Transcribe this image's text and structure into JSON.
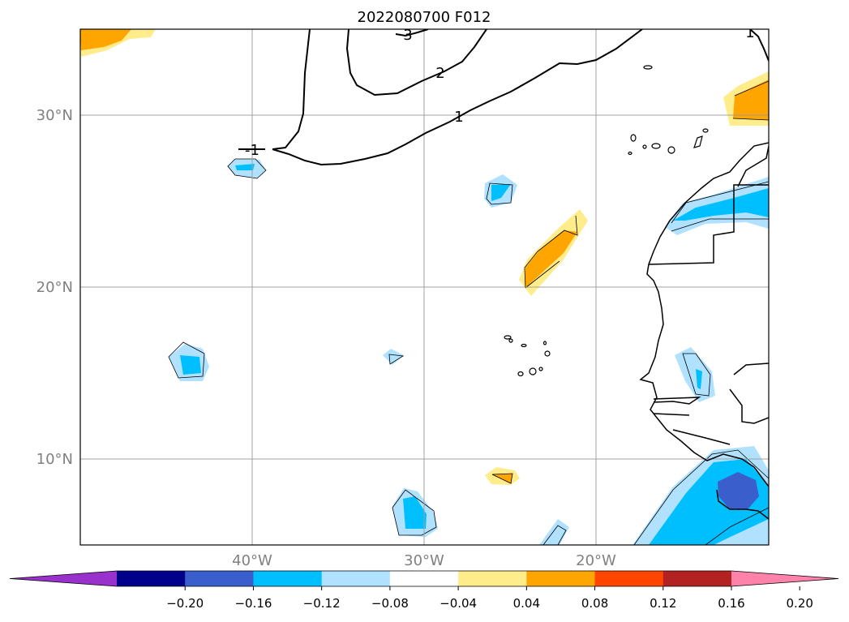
{
  "title": "2022080700 F012",
  "map": {
    "lat_labels": [
      {
        "label": "30°N",
        "lat": 30
      },
      {
        "label": "20°N",
        "lat": 20
      },
      {
        "label": "10°N",
        "lat": 10
      }
    ],
    "lon_labels": [
      {
        "label": "40°W",
        "lon": -40
      },
      {
        "label": "30°W",
        "lon": -30
      },
      {
        "label": "20°W",
        "lon": -20
      }
    ],
    "extent": {
      "lon_min": -50,
      "lon_max": -10,
      "lat_min": 5,
      "lat_max": 35
    },
    "contour_labels": [
      "3",
      "2",
      "1",
      "-1",
      "1"
    ]
  },
  "colorbar": {
    "ticks": [
      "−0.20",
      "−0.16",
      "−0.12",
      "−0.08",
      "−0.04",
      "0.04",
      "0.08",
      "0.12",
      "0.16",
      "0.20"
    ],
    "colors": [
      "#9932cc",
      "#00008b",
      "#3a5fcd",
      "#00bfff",
      "#b0e2ff",
      "#ffffff",
      "#ffec8b",
      "#ffa500",
      "#ff4500",
      "#b22222",
      "#ff82ab"
    ]
  }
}
